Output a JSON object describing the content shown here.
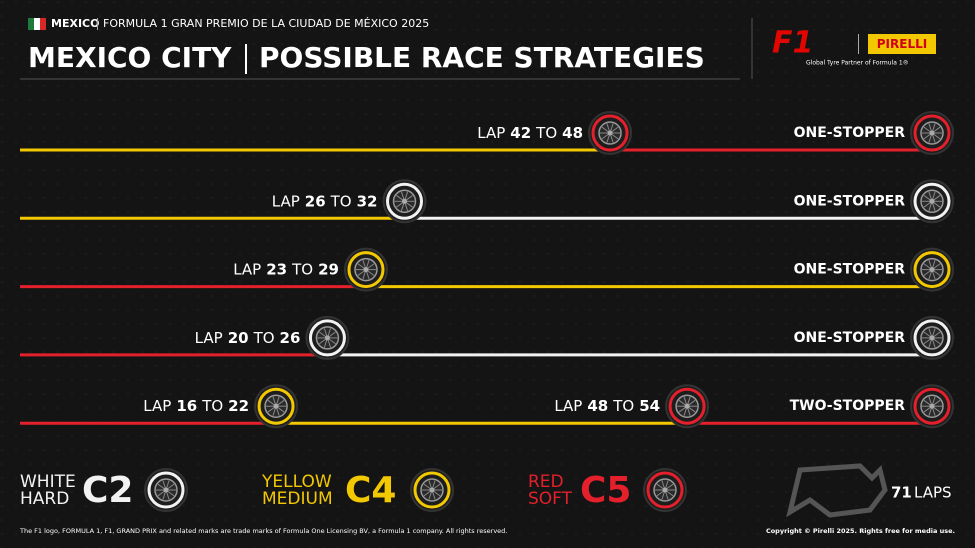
{
  "header": {
    "country": "MEXICO",
    "event": "FORMULA 1 GRAN PREMIO DE LA CIUDAD DE MÉXICO 2025",
    "title_left": "MEXICO CITY",
    "title_right": "POSSIBLE RACE STRATEGIES",
    "brand": "PIRELLI",
    "partner": "Global Tyre Partner of Formula 1®"
  },
  "window_words": {
    "lap": "LAP",
    "to": "TO"
  },
  "strategies": [
    {
      "label": "ONE-STOPPER",
      "colors": [
        "#f2c800",
        "#e3202b"
      ],
      "windows": [
        {
          "from": 42,
          "to": 48
        }
      ]
    },
    {
      "label": "ONE-STOPPER",
      "colors": [
        "#f2c800",
        "#f2f2f2"
      ],
      "windows": [
        {
          "from": 26,
          "to": 32
        }
      ]
    },
    {
      "label": "ONE-STOPPER",
      "colors": [
        "#e3202b",
        "#f2c800"
      ],
      "windows": [
        {
          "from": 23,
          "to": 29
        }
      ]
    },
    {
      "label": "ONE-STOPPER",
      "colors": [
        "#e3202b",
        "#f2f2f2"
      ],
      "windows": [
        {
          "from": 20,
          "to": 26
        }
      ]
    },
    {
      "label": "TWO-STOPPER",
      "colors": [
        "#e3202b",
        "#f2c800",
        "#e3202b"
      ],
      "windows": [
        {
          "from": 16,
          "to": 22
        },
        {
          "from": 48,
          "to": 54
        }
      ]
    }
  ],
  "legend": [
    {
      "color_name": "WHITE",
      "hardness": "HARD",
      "code": "C2",
      "color": "#f2f2f2"
    },
    {
      "color_name": "YELLOW",
      "hardness": "MEDIUM",
      "code": "C4",
      "color": "#f2c800"
    },
    {
      "color_name": "RED",
      "hardness": "SOFT",
      "code": "C5",
      "color": "#e3202b"
    }
  ],
  "race": {
    "laps": 71,
    "laps_word": "LAPS"
  },
  "footer": {
    "left": "The F1 logo, FORMULA 1, F1, GRAND PRIX and related marks are trade marks of Formula One Licensing BV, a Formula 1 company. All rights reserved.",
    "right": "Copyright © Pirelli 2025. Rights free for media use."
  }
}
